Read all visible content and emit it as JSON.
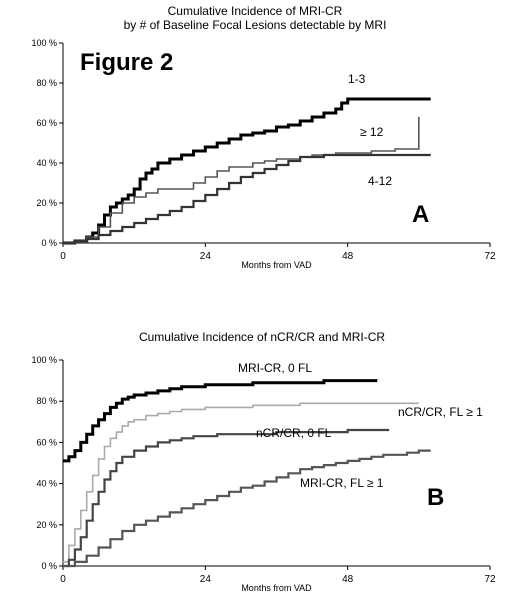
{
  "figure_label": "Figure 2",
  "chart_data": [
    {
      "type": "line",
      "step": true,
      "panel": "A",
      "title": "Cumulative Incidence of MRI-CR",
      "subtitle": "by # of Baseline Focal Lesions detectable by MRI",
      "xlabel": "Months from VAD",
      "ylabel": "",
      "xlim": [
        0,
        72
      ],
      "ylim": [
        0,
        100
      ],
      "xticks": [
        "0",
        "24",
        "48",
        "72"
      ],
      "yticks": [
        "0 %",
        "20 %",
        "40 %",
        "60 %",
        "80 %",
        "100 %"
      ],
      "grid": false,
      "series": [
        {
          "name": "1-3",
          "color": "#000000",
          "x": [
            0,
            2,
            4,
            5,
            6,
            7,
            8,
            9,
            10,
            11,
            12,
            13,
            14,
            15,
            16,
            18,
            20,
            22,
            24,
            26,
            28,
            30,
            32,
            34,
            36,
            38,
            40,
            42,
            44,
            46,
            47,
            48,
            50,
            52,
            54,
            56,
            58,
            60,
            62
          ],
          "y": [
            0,
            1,
            3,
            5,
            9,
            14,
            18,
            20,
            22,
            24,
            27,
            32,
            35,
            37,
            40,
            42,
            44,
            46,
            48,
            50,
            52,
            54,
            55,
            56,
            58,
            59,
            61,
            63,
            65,
            67,
            70,
            72,
            72,
            72,
            72,
            72,
            72,
            72,
            72
          ]
        },
        {
          "name": "≥ 12",
          "color": "#555555",
          "x": [
            0,
            4,
            6,
            8,
            10,
            12,
            14,
            16,
            18,
            20,
            22,
            24,
            26,
            28,
            30,
            32,
            34,
            36,
            38,
            40,
            42,
            44,
            46,
            48,
            50,
            52,
            54,
            56,
            58,
            59,
            60
          ],
          "y": [
            0,
            3,
            8,
            15,
            20,
            23,
            25,
            27,
            27,
            27,
            30,
            33,
            36,
            38,
            38,
            40,
            41,
            42,
            42,
            43,
            44,
            44,
            45,
            45,
            45,
            46,
            46,
            47,
            47,
            47,
            63
          ]
        },
        {
          "name": "4-12",
          "color": "#333333",
          "x": [
            0,
            2,
            4,
            6,
            8,
            10,
            12,
            14,
            16,
            18,
            20,
            22,
            24,
            26,
            28,
            30,
            32,
            34,
            36,
            38,
            40,
            44,
            48,
            52,
            56,
            60,
            62
          ],
          "y": [
            0,
            1,
            2,
            4,
            6,
            8,
            10,
            12,
            14,
            16,
            18,
            21,
            24,
            27,
            30,
            33,
            35,
            37,
            39,
            41,
            43,
            44,
            44,
            44,
            44,
            44,
            44
          ]
        }
      ]
    },
    {
      "type": "line",
      "step": true,
      "panel": "B",
      "title": "Cumulative Incidence of nCR/CR and MRI-CR",
      "subtitle": "",
      "xlabel": "Months from VAD",
      "ylabel": "",
      "xlim": [
        0,
        72
      ],
      "ylim": [
        0,
        100
      ],
      "xticks": [
        "0",
        "24",
        "48",
        "72"
      ],
      "yticks": [
        "0 %",
        "20 %",
        "40 %",
        "60 %",
        "80 %",
        "100 %"
      ],
      "grid": false,
      "series": [
        {
          "name": "MRI-CR, 0 FL",
          "color": "#000000",
          "x": [
            0,
            1,
            2,
            3,
            4,
            5,
            6,
            7,
            8,
            9,
            10,
            11,
            12,
            14,
            16,
            18,
            20,
            22,
            24,
            28,
            32,
            36,
            40,
            44,
            48,
            52,
            53
          ],
          "y": [
            51,
            53,
            56,
            60,
            64,
            68,
            71,
            74,
            77,
            79,
            81,
            82,
            83,
            84,
            85,
            86,
            87,
            87,
            88,
            88,
            89,
            89,
            89,
            90,
            90,
            90,
            90
          ]
        },
        {
          "name": "nCR/CR, FL ≥ 1",
          "color": "#aaaaaa",
          "x": [
            0,
            1,
            2,
            3,
            4,
            5,
            6,
            7,
            8,
            9,
            10,
            11,
            12,
            14,
            16,
            18,
            20,
            22,
            24,
            28,
            32,
            36,
            40,
            44,
            48,
            52,
            56,
            60
          ],
          "y": [
            2,
            10,
            18,
            27,
            36,
            44,
            52,
            58,
            62,
            65,
            68,
            70,
            71,
            73,
            74,
            75,
            76,
            76,
            77,
            77,
            78,
            78,
            79,
            79,
            79,
            79,
            79,
            79
          ]
        },
        {
          "name": "nCR/CR, 0 FL",
          "color": "#444444",
          "x": [
            0,
            1,
            2,
            3,
            4,
            5,
            6,
            7,
            8,
            9,
            10,
            12,
            14,
            16,
            18,
            20,
            22,
            24,
            26,
            28,
            32,
            36,
            40,
            44,
            48,
            52,
            55
          ],
          "y": [
            0,
            3,
            8,
            14,
            22,
            30,
            36,
            42,
            46,
            50,
            53,
            56,
            58,
            60,
            61,
            62,
            63,
            63,
            64,
            64,
            64,
            65,
            65,
            65,
            66,
            66,
            66
          ]
        },
        {
          "name": "MRI-CR, FL ≥ 1",
          "color": "#555555",
          "x": [
            0,
            2,
            4,
            6,
            8,
            10,
            12,
            14,
            16,
            18,
            20,
            22,
            24,
            26,
            28,
            30,
            32,
            34,
            36,
            38,
            40,
            42,
            44,
            46,
            48,
            50,
            52,
            54,
            56,
            58,
            60,
            62
          ],
          "y": [
            0,
            2,
            5,
            9,
            13,
            17,
            20,
            22,
            24,
            26,
            28,
            30,
            32,
            34,
            36,
            38,
            39,
            41,
            43,
            45,
            47,
            48,
            49,
            50,
            51,
            52,
            53,
            54,
            54,
            55,
            56,
            56
          ]
        }
      ]
    }
  ]
}
